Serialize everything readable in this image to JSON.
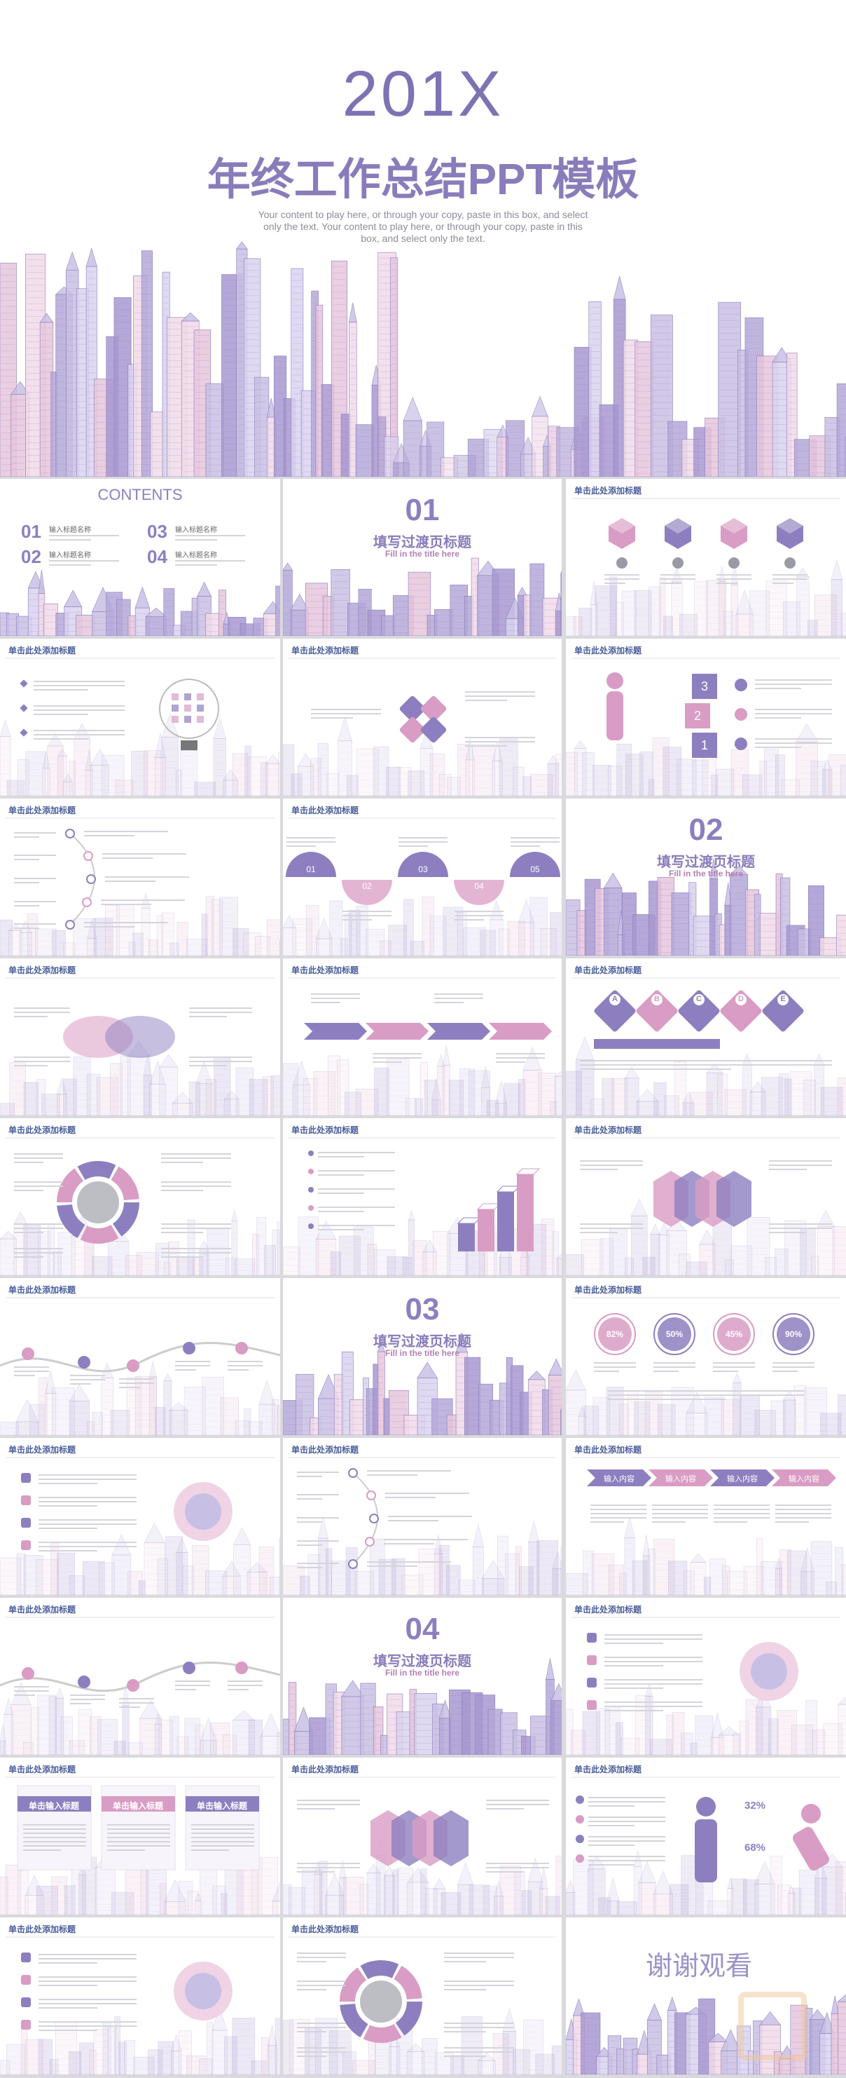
{
  "cover": {
    "year": "201X",
    "title": "年终工作总结PPT模板",
    "subtitle": "Your content to play here, or through your copy, paste in this box, and select only the text. Your content to play here, or through your copy, paste in this box, and select only the text."
  },
  "slides": [
    {
      "title": "CONTENTS",
      "items": [
        {
          "number": "01",
          "label": "输入标题名称"
        },
        {
          "number": "02",
          "label": "输入标题名称"
        },
        {
          "number": "03",
          "label": "输入标题名称"
        },
        {
          "number": "04",
          "label": "输入标题名称"
        }
      ]
    },
    {
      "number": "01",
      "title": "填写过渡页标题",
      "subtitle": "Fill in the title here"
    },
    {
      "header": "单击此处添加标题"
    },
    {
      "header": "单击此处添加标题"
    },
    {
      "header": "单击此处添加标题"
    },
    {
      "header": "单击此处添加标题",
      "labels": [
        "3",
        "2",
        "1"
      ]
    },
    {
      "header": "单击此处添加标题"
    },
    {
      "header": "单击此处添加标题",
      "labels": [
        "01",
        "02",
        "03",
        "04",
        "05"
      ]
    },
    {
      "number": "02",
      "title": "填写过渡页标题",
      "subtitle": "Fill in the title here"
    },
    {
      "header": "单击此处添加标题"
    },
    {
      "header": "单击此处添加标题"
    },
    {
      "header": "单击此处添加标题",
      "labels": [
        "A",
        "B",
        "C",
        "D",
        "E"
      ]
    },
    {
      "header": "单击此处添加标题"
    },
    {
      "header": "单击此处添加标题"
    },
    {
      "header": "单击此处添加标题"
    },
    {
      "header": "单击此处添加标题"
    },
    {
      "number": "03",
      "title": "填写过渡页标题",
      "subtitle": "Fill in the title here"
    },
    {
      "header": "单击此处添加标题",
      "stats": [
        "82%",
        "50%",
        "45%",
        "90%"
      ]
    },
    {
      "header": "单击此处添加标题"
    },
    {
      "header": "单击此处添加标题"
    },
    {
      "header": "单击此处添加标题",
      "labels": [
        "输入内容",
        "输入内容",
        "输入内容",
        "输入内容"
      ]
    },
    {
      "header": "单击此处添加标题"
    },
    {
      "number": "04",
      "title": "填写过渡页标题",
      "subtitle": "Fill in the title here"
    },
    {
      "header": "单击此处添加标题"
    },
    {
      "header": "单击此处添加标题",
      "labels": [
        "单击输入标题",
        "单击输入标题",
        "单击输入标题"
      ]
    },
    {
      "header": "单击此处添加标题"
    },
    {
      "header": "单击此处添加标题",
      "stats": [
        "32%",
        "68%"
      ]
    },
    {
      "header": "单击此处添加标题"
    },
    {
      "header": "单击此处添加标题"
    },
    {
      "closing": "谢谢观看"
    }
  ]
}
